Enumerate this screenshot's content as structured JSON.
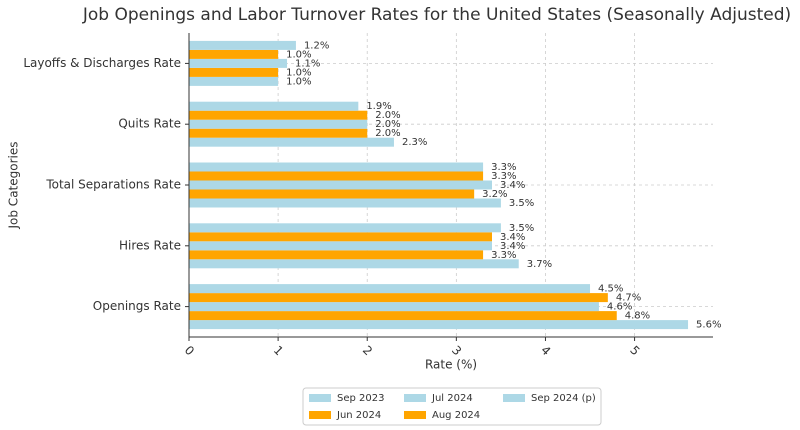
{
  "chart_data": {
    "type": "barh",
    "title": "Job Openings and Labor Turnover Rates for the United States (Seasonally Adjusted)",
    "xlabel": "Rate (%)",
    "ylabel": "Job Categories",
    "categories": [
      "Openings Rate",
      "Hires Rate",
      "Total Separations Rate",
      "Quits Rate",
      "Layoffs & Discharges Rate"
    ],
    "series": [
      {
        "name": "Sep 2023",
        "color": "#add8e6",
        "values": [
          5.6,
          3.7,
          3.5,
          2.3,
          1.0
        ],
        "value_labels": [
          "5.6%",
          "3.7%",
          "3.5%",
          "2.3%",
          "1.0%"
        ]
      },
      {
        "name": "Jun 2024",
        "color": "#ffa500",
        "values": [
          4.8,
          3.3,
          3.2,
          2.0,
          1.0
        ],
        "value_labels": [
          "4.8%",
          "3.3%",
          "3.2%",
          "2.0%",
          "1.0%"
        ]
      },
      {
        "name": "Jul 2024",
        "color": "#add8e6",
        "values": [
          4.6,
          3.4,
          3.4,
          2.0,
          1.1
        ],
        "value_labels": [
          "4.6%",
          "3.4%",
          "3.4%",
          "2.0%",
          "1.1%"
        ]
      },
      {
        "name": "Aug 2024",
        "color": "#ffa500",
        "values": [
          4.7,
          3.4,
          3.3,
          2.0,
          1.0
        ],
        "value_labels": [
          "4.7%",
          "3.4%",
          "3.3%",
          "2.0%",
          "1.0%"
        ]
      },
      {
        "name": "Sep 2024 (p)",
        "color": "#add8e6",
        "values": [
          4.5,
          3.5,
          3.3,
          1.9,
          1.2
        ],
        "value_labels": [
          "4.5%",
          "3.5%",
          "3.3%",
          "1.9%",
          "1.2%"
        ]
      }
    ],
    "xlim": [
      0,
      5.88
    ],
    "xticks": [
      0,
      1,
      2,
      3,
      4,
      5
    ],
    "grid": true,
    "legend": "below"
  }
}
